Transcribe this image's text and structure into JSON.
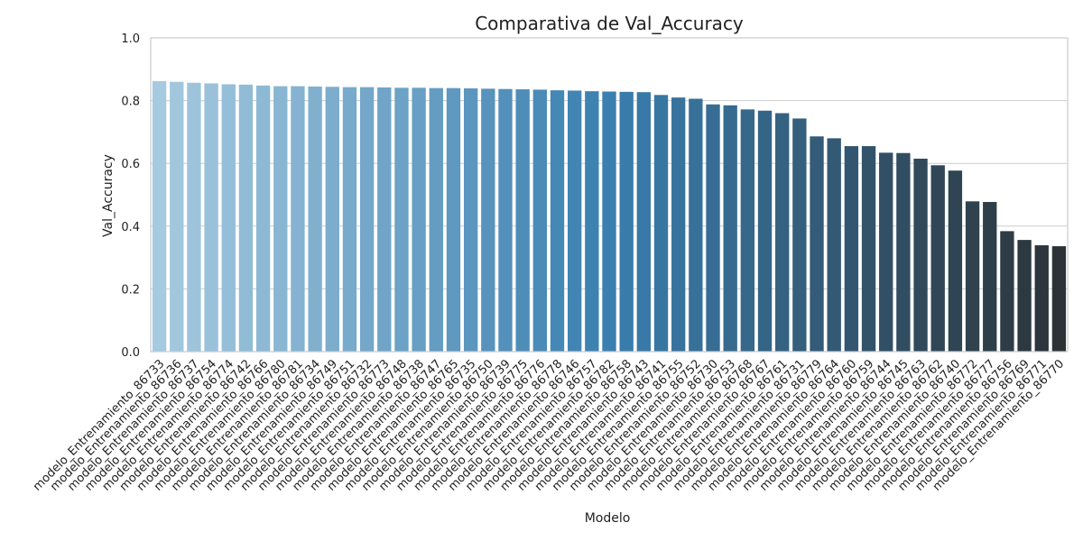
{
  "chart_data": {
    "type": "bar",
    "title": "Comparativa de Val_Accuracy",
    "xlabel": "Modelo",
    "ylabel": "Val_Accuracy",
    "ylim": [
      0,
      1.0
    ],
    "yticks": [
      "0.0",
      "0.2",
      "0.4",
      "0.6",
      "0.8",
      "1.0"
    ],
    "grid": "horizontal",
    "categories": [
      "modelo_Entrenamiento_86733",
      "modelo_Entrenamiento_86736",
      "modelo_Entrenamiento_86737",
      "modelo_Entrenamiento_86754",
      "modelo_Entrenamiento_86774",
      "modelo_Entrenamiento_86742",
      "modelo_Entrenamiento_86766",
      "modelo_Entrenamiento_86780",
      "modelo_Entrenamiento_86781",
      "modelo_Entrenamiento_86734",
      "modelo_Entrenamiento_86749",
      "modelo_Entrenamiento_86751",
      "modelo_Entrenamiento_86732",
      "modelo_Entrenamiento_86773",
      "modelo_Entrenamiento_86748",
      "modelo_Entrenamiento_86738",
      "modelo_Entrenamiento_86747",
      "modelo_Entrenamiento_86765",
      "modelo_Entrenamiento_86735",
      "modelo_Entrenamiento_86750",
      "modelo_Entrenamiento_86739",
      "modelo_Entrenamiento_86775",
      "modelo_Entrenamiento_86776",
      "modelo_Entrenamiento_86778",
      "modelo_Entrenamiento_86746",
      "modelo_Entrenamiento_86757",
      "modelo_Entrenamiento_86782",
      "modelo_Entrenamiento_86758",
      "modelo_Entrenamiento_86743",
      "modelo_Entrenamiento_86741",
      "modelo_Entrenamiento_86755",
      "modelo_Entrenamiento_86752",
      "modelo_Entrenamiento_86730",
      "modelo_Entrenamiento_86753",
      "modelo_Entrenamiento_86768",
      "modelo_Entrenamiento_86767",
      "modelo_Entrenamiento_86761",
      "modelo_Entrenamiento_86731",
      "modelo_Entrenamiento_86779",
      "modelo_Entrenamiento_86764",
      "modelo_Entrenamiento_86760",
      "modelo_Entrenamiento_86759",
      "modelo_Entrenamiento_86744",
      "modelo_Entrenamiento_86745",
      "modelo_Entrenamiento_86763",
      "modelo_Entrenamiento_86762",
      "modelo_Entrenamiento_86740",
      "modelo_Entrenamiento_86772",
      "modelo_Entrenamiento_86777",
      "modelo_Entrenamiento_86756",
      "modelo_Entrenamiento_86769",
      "modelo_Entrenamiento_86771",
      "modelo_Entrenamiento_86770"
    ],
    "values": [
      0.862,
      0.86,
      0.857,
      0.855,
      0.852,
      0.851,
      0.848,
      0.846,
      0.846,
      0.845,
      0.844,
      0.843,
      0.843,
      0.842,
      0.841,
      0.841,
      0.84,
      0.84,
      0.839,
      0.838,
      0.837,
      0.836,
      0.835,
      0.833,
      0.832,
      0.83,
      0.829,
      0.828,
      0.827,
      0.818,
      0.81,
      0.806,
      0.788,
      0.785,
      0.772,
      0.768,
      0.76,
      0.743,
      0.686,
      0.68,
      0.655,
      0.655,
      0.634,
      0.633,
      0.615,
      0.594,
      0.577,
      0.479,
      0.477,
      0.384,
      0.356,
      0.339,
      0.336
    ],
    "palette": {
      "start": "#a6cadf",
      "mid": "#3a7fb0",
      "end": "#2c3337"
    },
    "grid_color": "#cccccc",
    "frame_color": "#cccccc"
  }
}
